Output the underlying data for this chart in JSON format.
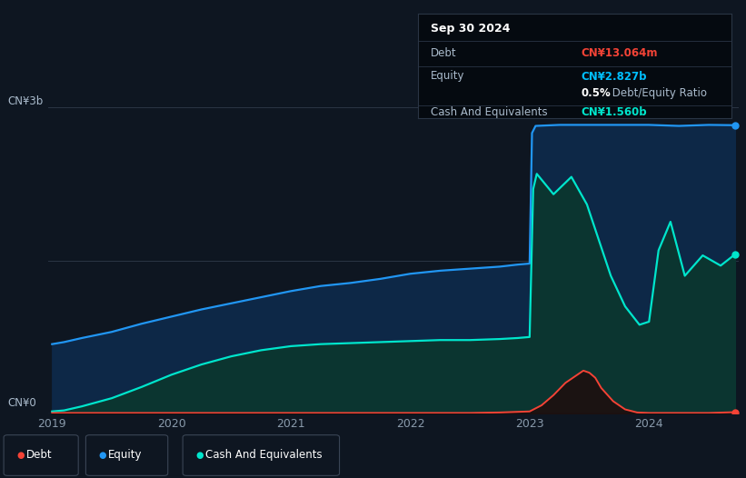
{
  "background_color": "#0e1621",
  "plot_bg_color": "#0e1621",
  "ylabel_top": "CN¥3b",
  "ylabel_bottom": "CN¥0",
  "x_ticks": [
    2019,
    2020,
    2021,
    2022,
    2023,
    2024
  ],
  "ylim": [
    0,
    3.0
  ],
  "equity_color": "#2196f3",
  "debt_color": "#f44336",
  "cash_color": "#00e5cc",
  "legend_items": [
    "Debt",
    "Equity",
    "Cash And Equivalents"
  ],
  "legend_colors": [
    "#f44336",
    "#2196f3",
    "#00e5cc"
  ],
  "info_date": "Sep 30 2024",
  "info_debt_label": "Debt",
  "info_debt_value": "CN¥13.064m",
  "info_debt_color": "#f44336",
  "info_equity_label": "Equity",
  "info_equity_value": "CN¥2.827b",
  "info_equity_color": "#00bfff",
  "info_ratio_bold": "0.5%",
  "info_ratio_normal": " Debt/Equity Ratio",
  "info_cash_label": "Cash And Equivalents",
  "info_cash_value": "CN¥1.560b",
  "info_cash_color": "#00e5cc",
  "equity_x": [
    2019.0,
    2019.1,
    2019.25,
    2019.5,
    2019.75,
    2020.0,
    2020.25,
    2020.5,
    2020.75,
    2021.0,
    2021.25,
    2021.5,
    2021.75,
    2022.0,
    2022.25,
    2022.5,
    2022.75,
    2022.9,
    2023.0,
    2023.02,
    2023.05,
    2023.25,
    2023.5,
    2023.75,
    2024.0,
    2024.25,
    2024.5,
    2024.72
  ],
  "equity_y": [
    0.68,
    0.7,
    0.74,
    0.8,
    0.88,
    0.95,
    1.02,
    1.08,
    1.14,
    1.2,
    1.25,
    1.28,
    1.32,
    1.37,
    1.4,
    1.42,
    1.44,
    1.46,
    1.47,
    2.75,
    2.82,
    2.83,
    2.83,
    2.83,
    2.83,
    2.82,
    2.83,
    2.827
  ],
  "cash_x": [
    2019.0,
    2019.1,
    2019.25,
    2019.5,
    2019.75,
    2020.0,
    2020.25,
    2020.5,
    2020.75,
    2021.0,
    2021.25,
    2021.5,
    2021.75,
    2022.0,
    2022.25,
    2022.5,
    2022.75,
    2022.9,
    2023.0,
    2023.03,
    2023.06,
    2023.2,
    2023.35,
    2023.48,
    2023.58,
    2023.68,
    2023.8,
    2023.92,
    2024.0,
    2024.08,
    2024.18,
    2024.3,
    2024.45,
    2024.6,
    2024.72
  ],
  "cash_y": [
    0.02,
    0.03,
    0.07,
    0.15,
    0.26,
    0.38,
    0.48,
    0.56,
    0.62,
    0.66,
    0.68,
    0.69,
    0.7,
    0.71,
    0.72,
    0.72,
    0.73,
    0.74,
    0.75,
    2.2,
    2.35,
    2.15,
    2.32,
    2.05,
    1.7,
    1.35,
    1.05,
    0.87,
    0.9,
    1.6,
    1.88,
    1.35,
    1.55,
    1.45,
    1.56
  ],
  "debt_x": [
    2019.0,
    2019.5,
    2020.0,
    2020.5,
    2021.0,
    2021.5,
    2022.0,
    2022.5,
    2022.75,
    2023.0,
    2023.1,
    2023.2,
    2023.3,
    2023.4,
    2023.45,
    2023.5,
    2023.55,
    2023.6,
    2023.7,
    2023.8,
    2023.9,
    2024.0,
    2024.25,
    2024.5,
    2024.72
  ],
  "debt_y": [
    0.005,
    0.005,
    0.005,
    0.005,
    0.005,
    0.005,
    0.005,
    0.005,
    0.01,
    0.02,
    0.08,
    0.18,
    0.3,
    0.38,
    0.42,
    0.4,
    0.35,
    0.25,
    0.12,
    0.04,
    0.01,
    0.005,
    0.005,
    0.005,
    0.013
  ]
}
